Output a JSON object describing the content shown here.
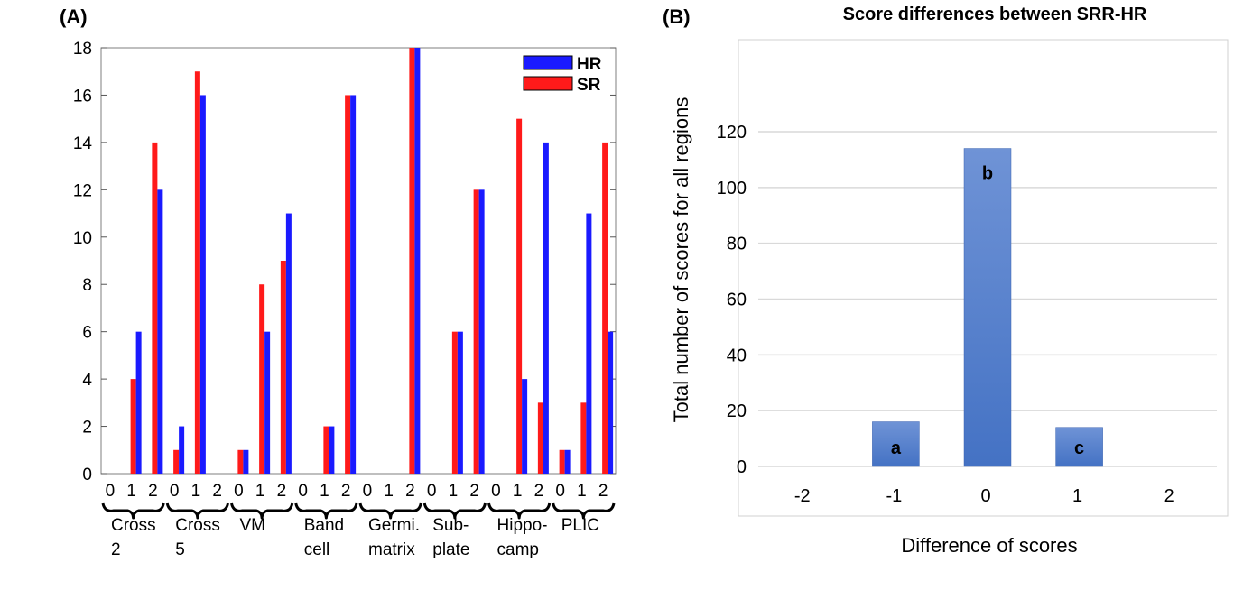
{
  "panels": {
    "a_label": "(A)",
    "b_label": "(B)"
  },
  "colors": {
    "hr": "#1a1aff",
    "sr": "#ff1a1a",
    "bar_b": "#4472c4",
    "grid_b": "#d9d9d9",
    "plot_b_border": "#d0d0d0"
  },
  "chart_data": [
    {
      "type": "bar",
      "panel": "A",
      "ylim": [
        0,
        18
      ],
      "yticks": [
        0,
        2,
        4,
        6,
        8,
        10,
        12,
        14,
        16,
        18
      ],
      "xticks": [
        "0",
        "1",
        "2"
      ],
      "grid": false,
      "legend_position": "top-right",
      "categories": [
        {
          "label_lines": [
            "Cross",
            "2"
          ],
          "sr": [
            0,
            4,
            14
          ],
          "hr": [
            0,
            6,
            12
          ]
        },
        {
          "label_lines": [
            "Cross",
            "5"
          ],
          "sr": [
            1,
            17,
            0
          ],
          "hr": [
            2,
            16,
            0
          ]
        },
        {
          "label_lines": [
            "VM"
          ],
          "sr": [
            1,
            8,
            9
          ],
          "hr": [
            1,
            6,
            11
          ]
        },
        {
          "label_lines": [
            "Band",
            "cell"
          ],
          "sr": [
            0,
            2,
            16
          ],
          "hr": [
            0,
            2,
            16
          ]
        },
        {
          "label_lines": [
            "Germi.",
            "matrix"
          ],
          "sr": [
            0,
            0,
            18
          ],
          "hr": [
            0,
            0,
            18
          ]
        },
        {
          "label_lines": [
            "Sub-",
            "plate"
          ],
          "sr": [
            0,
            6,
            12
          ],
          "hr": [
            0,
            6,
            12
          ]
        },
        {
          "label_lines": [
            "Hippo-",
            "camp"
          ],
          "sr": [
            0,
            15,
            3
          ],
          "hr": [
            0,
            4,
            14
          ]
        },
        {
          "label_lines": [
            "PLIC"
          ],
          "sr": [
            1,
            3,
            14
          ],
          "hr": [
            1,
            11,
            6
          ]
        }
      ],
      "series": [
        {
          "name": "HR",
          "key": "hr"
        },
        {
          "name": "SR",
          "key": "sr"
        }
      ]
    },
    {
      "type": "bar",
      "panel": "B",
      "title": "Score differences between SRR-HR",
      "xlabel": "Difference of scores",
      "ylabel": "Total number of scores for all regions",
      "ylim": [
        0,
        130
      ],
      "yticks": [
        0,
        20,
        40,
        60,
        80,
        100,
        120
      ],
      "grid": true,
      "categories": [
        "-2",
        "-1",
        "0",
        "1",
        "2"
      ],
      "values": [
        0,
        16,
        114,
        14,
        0
      ],
      "annotations": [
        "",
        "a",
        "b",
        "c",
        ""
      ]
    }
  ]
}
